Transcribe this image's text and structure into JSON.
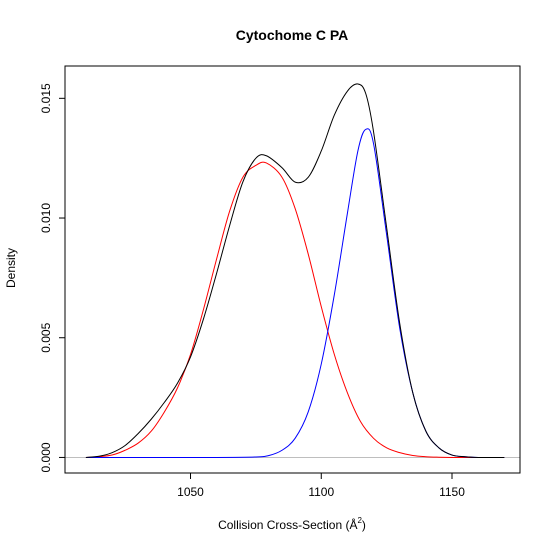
{
  "chart_data": {
    "type": "line",
    "title": "Cytochome C PA",
    "xlabel": "Collision Cross-Section (Å",
    "xlabel_superscript": "2",
    "xlabel_suffix": ")",
    "ylabel": "Density",
    "xlim": [
      1002,
      1176
    ],
    "ylim": [
      -0.00065,
      0.01635
    ],
    "x_ticks": [
      1050,
      1100,
      1150
    ],
    "x_tick_labels": [
      "1050",
      "1100",
      "1150"
    ],
    "y_ticks": [
      0.0,
      0.005,
      0.01,
      0.015
    ],
    "y_tick_labels": [
      "0.000",
      "0.005",
      "0.010",
      "0.015"
    ],
    "baseline": 0.0,
    "grid": false,
    "legend": "none",
    "colors": {
      "total": "#000000",
      "component_1": "#ff0000",
      "component_2": "#0000ff",
      "baseline": "#bebebe"
    },
    "series": [
      {
        "color_key": "total",
        "x": [
          1010,
          1015,
          1020,
          1025,
          1030,
          1035,
          1040,
          1045,
          1050,
          1055,
          1060,
          1065,
          1070,
          1075,
          1079,
          1085,
          1090,
          1095,
          1100,
          1105,
          1110,
          1114,
          1117,
          1120,
          1125,
          1130,
          1135,
          1140,
          1145,
          1150,
          1155,
          1160,
          1165,
          1170
        ],
        "y": [
          0.0,
          5e-05,
          0.0002,
          0.0005,
          0.001,
          0.0016,
          0.0023,
          0.0031,
          0.0042,
          0.0058,
          0.0077,
          0.0097,
          0.0115,
          0.0125,
          0.0126,
          0.0121,
          0.0115,
          0.0117,
          0.0128,
          0.0143,
          0.0153,
          0.0156,
          0.0152,
          0.0136,
          0.0096,
          0.0056,
          0.0027,
          0.0011,
          0.0004,
          0.0001,
          3e-05,
          0.0,
          0.0,
          0.0
        ]
      },
      {
        "color_key": "component_1",
        "x": [
          1010,
          1015,
          1020,
          1025,
          1030,
          1035,
          1040,
          1045,
          1050,
          1055,
          1060,
          1065,
          1070,
          1075,
          1079,
          1085,
          1090,
          1095,
          1100,
          1105,
          1110,
          1115,
          1120,
          1125,
          1130,
          1135,
          1140,
          1145,
          1150,
          1155,
          1160,
          1165,
          1170
        ],
        "y": [
          0.0,
          3e-05,
          0.0001,
          0.0003,
          0.0006,
          0.0011,
          0.0019,
          0.0029,
          0.0043,
          0.0062,
          0.0083,
          0.0103,
          0.0117,
          0.0122,
          0.0123,
          0.0117,
          0.0104,
          0.0085,
          0.0063,
          0.0043,
          0.0027,
          0.0015,
          0.0008,
          0.0004,
          0.0002,
          8e-05,
          3e-05,
          1e-05,
          0.0,
          0.0,
          0.0,
          0.0,
          0.0
        ]
      },
      {
        "color_key": "component_2",
        "x": [
          1010,
          1030,
          1060,
          1075,
          1080,
          1085,
          1090,
          1095,
          1100,
          1105,
          1110,
          1114,
          1117,
          1120,
          1125,
          1130,
          1135,
          1140,
          1145,
          1150,
          1155,
          1160,
          1170
        ],
        "y": [
          0.0,
          0.0,
          0.0,
          2e-05,
          8e-05,
          0.0003,
          0.0008,
          0.0019,
          0.0039,
          0.0068,
          0.0102,
          0.0128,
          0.0137,
          0.0131,
          0.0093,
          0.0054,
          0.0027,
          0.0011,
          0.0004,
          0.0001,
          3e-05,
          0.0,
          0.0
        ]
      }
    ]
  }
}
